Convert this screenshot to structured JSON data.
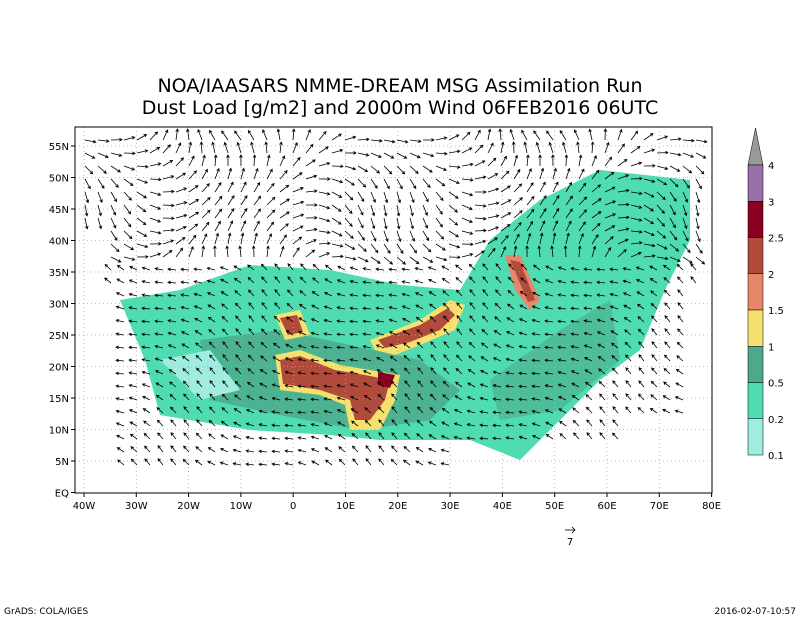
{
  "title": {
    "line1": "NOA/IAASARS NMME-DREAM MSG Assimilation Run",
    "line2": "Dust Load [g/m2] and 2000m Wind 06FEB2016 06UTC"
  },
  "map": {
    "lon_labels": [
      "40W",
      "30W",
      "20W",
      "10W",
      "0",
      "10E",
      "20E",
      "30E",
      "40E",
      "50E",
      "60E",
      "70E",
      "80E"
    ],
    "lat_labels": [
      "55N",
      "50N",
      "45N",
      "40N",
      "35N",
      "30N",
      "25N",
      "20N",
      "15N",
      "10N",
      "5N",
      "EQ"
    ]
  },
  "colorbar": {
    "labels": [
      "4",
      "3",
      "2.5",
      "2",
      "1.5",
      "1",
      "0.5",
      "0.2",
      "0.1"
    ]
  },
  "reference_vector": {
    "label": "7"
  },
  "footer": {
    "left": "GrADS: COLA/IGES",
    "right": "2016-02-07-10:57"
  }
}
